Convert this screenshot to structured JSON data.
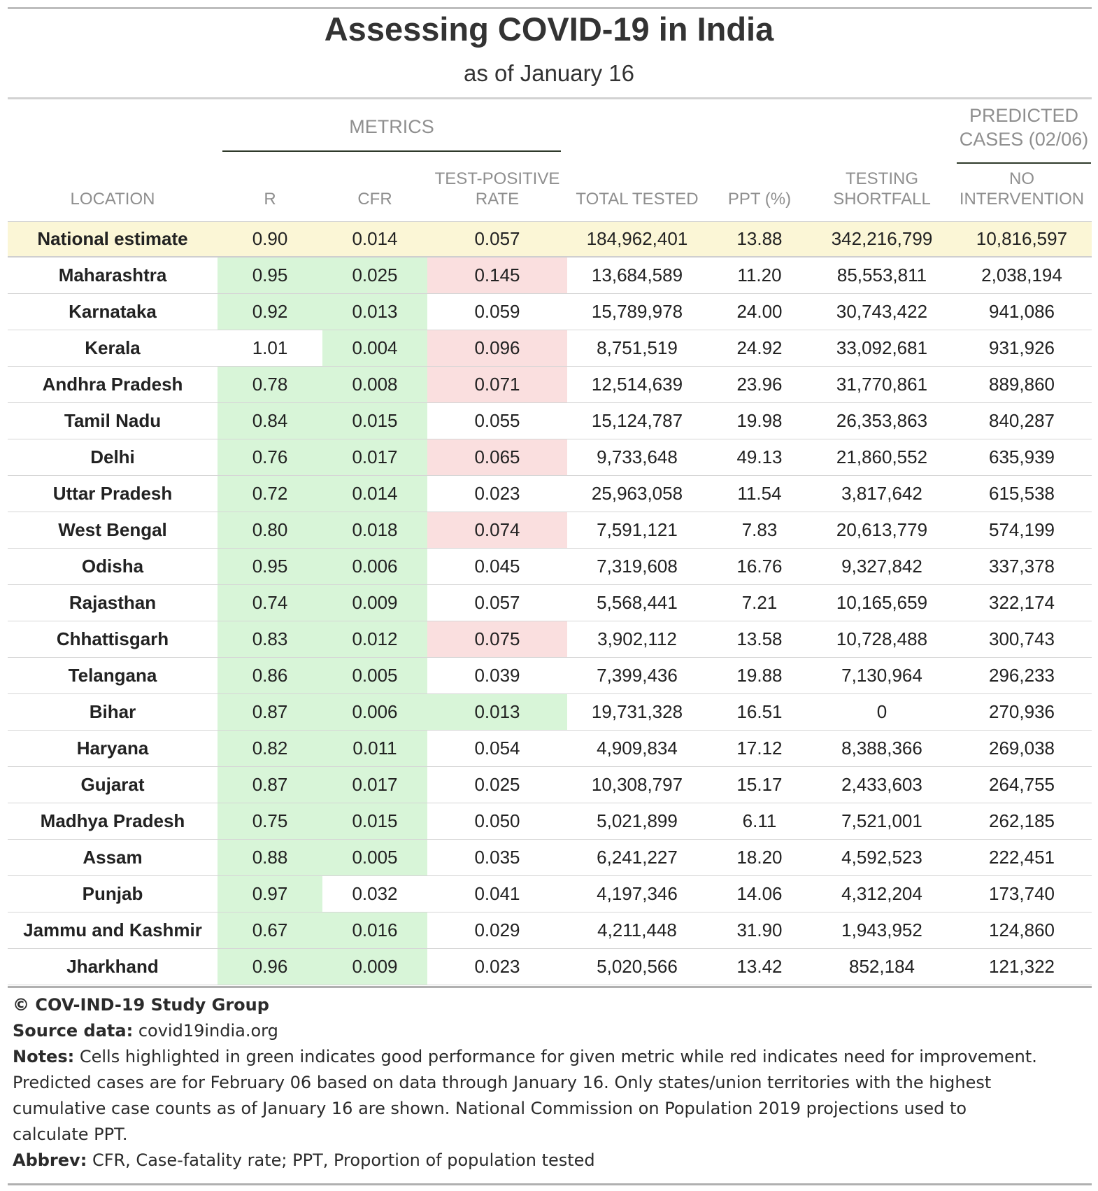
{
  "title": "Assessing COVID-19 in India",
  "subtitle": "as of January 16",
  "spanners": {
    "metrics": "METRICS",
    "predicted_line1": "PREDICTED",
    "predicted_line2": "CASES (02/06)"
  },
  "column_headers": {
    "location": "LOCATION",
    "r": "R",
    "cfr": "CFR",
    "tpr_line1": "TEST-POSITIVE",
    "tpr_line2": "RATE",
    "total_tested": "TOTAL TESTED",
    "ppt": "PPT (%)",
    "shortfall_line1": "TESTING",
    "shortfall_line2": "SHORTFALL",
    "nointervention_line1": "NO",
    "nointervention_line2": "INTERVENTION"
  },
  "colors": {
    "good": "#d8f5d8",
    "needs_improvement": "#fadfdf",
    "national_row": "#fbf6d6"
  },
  "chart_data": {
    "type": "table",
    "title": "Assessing COVID-19 in India",
    "subtitle": "as of January 16",
    "columns": [
      "LOCATION",
      "R",
      "CFR",
      "TEST-POSITIVE RATE",
      "TOTAL TESTED",
      "PPT (%)",
      "TESTING SHORTFALL",
      "NO INTERVENTION"
    ],
    "rows": [
      {
        "location": "National estimate",
        "r": "0.90",
        "cfr": "0.014",
        "tpr": "0.057",
        "total_tested": "184,962,401",
        "ppt": "13.88",
        "shortfall": "342,216,799",
        "no_intervention": "10,816,597",
        "highlight": {
          "r": "",
          "cfr": "",
          "tpr": ""
        }
      },
      {
        "location": "Maharashtra",
        "r": "0.95",
        "cfr": "0.025",
        "tpr": "0.145",
        "total_tested": "13,684,589",
        "ppt": "11.20",
        "shortfall": "85,553,811",
        "no_intervention": "2,038,194",
        "highlight": {
          "r": "green",
          "cfr": "green",
          "tpr": "red"
        }
      },
      {
        "location": "Karnataka",
        "r": "0.92",
        "cfr": "0.013",
        "tpr": "0.059",
        "total_tested": "15,789,978",
        "ppt": "24.00",
        "shortfall": "30,743,422",
        "no_intervention": "941,086",
        "highlight": {
          "r": "green",
          "cfr": "green",
          "tpr": ""
        }
      },
      {
        "location": "Kerala",
        "r": "1.01",
        "cfr": "0.004",
        "tpr": "0.096",
        "total_tested": "8,751,519",
        "ppt": "24.92",
        "shortfall": "33,092,681",
        "no_intervention": "931,926",
        "highlight": {
          "r": "",
          "cfr": "green",
          "tpr": "red"
        }
      },
      {
        "location": "Andhra Pradesh",
        "r": "0.78",
        "cfr": "0.008",
        "tpr": "0.071",
        "total_tested": "12,514,639",
        "ppt": "23.96",
        "shortfall": "31,770,861",
        "no_intervention": "889,860",
        "highlight": {
          "r": "green",
          "cfr": "green",
          "tpr": "red"
        }
      },
      {
        "location": "Tamil Nadu",
        "r": "0.84",
        "cfr": "0.015",
        "tpr": "0.055",
        "total_tested": "15,124,787",
        "ppt": "19.98",
        "shortfall": "26,353,863",
        "no_intervention": "840,287",
        "highlight": {
          "r": "green",
          "cfr": "green",
          "tpr": ""
        }
      },
      {
        "location": "Delhi",
        "r": "0.76",
        "cfr": "0.017",
        "tpr": "0.065",
        "total_tested": "9,733,648",
        "ppt": "49.13",
        "shortfall": "21,860,552",
        "no_intervention": "635,939",
        "highlight": {
          "r": "green",
          "cfr": "green",
          "tpr": "red"
        }
      },
      {
        "location": "Uttar Pradesh",
        "r": "0.72",
        "cfr": "0.014",
        "tpr": "0.023",
        "total_tested": "25,963,058",
        "ppt": "11.54",
        "shortfall": "3,817,642",
        "no_intervention": "615,538",
        "highlight": {
          "r": "green",
          "cfr": "green",
          "tpr": ""
        }
      },
      {
        "location": "West Bengal",
        "r": "0.80",
        "cfr": "0.018",
        "tpr": "0.074",
        "total_tested": "7,591,121",
        "ppt": "7.83",
        "shortfall": "20,613,779",
        "no_intervention": "574,199",
        "highlight": {
          "r": "green",
          "cfr": "green",
          "tpr": "red"
        }
      },
      {
        "location": "Odisha",
        "r": "0.95",
        "cfr": "0.006",
        "tpr": "0.045",
        "total_tested": "7,319,608",
        "ppt": "16.76",
        "shortfall": "9,327,842",
        "no_intervention": "337,378",
        "highlight": {
          "r": "green",
          "cfr": "green",
          "tpr": ""
        }
      },
      {
        "location": "Rajasthan",
        "r": "0.74",
        "cfr": "0.009",
        "tpr": "0.057",
        "total_tested": "5,568,441",
        "ppt": "7.21",
        "shortfall": "10,165,659",
        "no_intervention": "322,174",
        "highlight": {
          "r": "green",
          "cfr": "green",
          "tpr": ""
        }
      },
      {
        "location": "Chhattisgarh",
        "r": "0.83",
        "cfr": "0.012",
        "tpr": "0.075",
        "total_tested": "3,902,112",
        "ppt": "13.58",
        "shortfall": "10,728,488",
        "no_intervention": "300,743",
        "highlight": {
          "r": "green",
          "cfr": "green",
          "tpr": "red"
        }
      },
      {
        "location": "Telangana",
        "r": "0.86",
        "cfr": "0.005",
        "tpr": "0.039",
        "total_tested": "7,399,436",
        "ppt": "19.88",
        "shortfall": "7,130,964",
        "no_intervention": "296,233",
        "highlight": {
          "r": "green",
          "cfr": "green",
          "tpr": ""
        }
      },
      {
        "location": "Bihar",
        "r": "0.87",
        "cfr": "0.006",
        "tpr": "0.013",
        "total_tested": "19,731,328",
        "ppt": "16.51",
        "shortfall": "0",
        "no_intervention": "270,936",
        "highlight": {
          "r": "green",
          "cfr": "green",
          "tpr": "green"
        }
      },
      {
        "location": "Haryana",
        "r": "0.82",
        "cfr": "0.011",
        "tpr": "0.054",
        "total_tested": "4,909,834",
        "ppt": "17.12",
        "shortfall": "8,388,366",
        "no_intervention": "269,038",
        "highlight": {
          "r": "green",
          "cfr": "green",
          "tpr": ""
        }
      },
      {
        "location": "Gujarat",
        "r": "0.87",
        "cfr": "0.017",
        "tpr": "0.025",
        "total_tested": "10,308,797",
        "ppt": "15.17",
        "shortfall": "2,433,603",
        "no_intervention": "264,755",
        "highlight": {
          "r": "green",
          "cfr": "green",
          "tpr": ""
        }
      },
      {
        "location": "Madhya Pradesh",
        "r": "0.75",
        "cfr": "0.015",
        "tpr": "0.050",
        "total_tested": "5,021,899",
        "ppt": "6.11",
        "shortfall": "7,521,001",
        "no_intervention": "262,185",
        "highlight": {
          "r": "green",
          "cfr": "green",
          "tpr": ""
        }
      },
      {
        "location": "Assam",
        "r": "0.88",
        "cfr": "0.005",
        "tpr": "0.035",
        "total_tested": "6,241,227",
        "ppt": "18.20",
        "shortfall": "4,592,523",
        "no_intervention": "222,451",
        "highlight": {
          "r": "green",
          "cfr": "green",
          "tpr": ""
        }
      },
      {
        "location": "Punjab",
        "r": "0.97",
        "cfr": "0.032",
        "tpr": "0.041",
        "total_tested": "4,197,346",
        "ppt": "14.06",
        "shortfall": "4,312,204",
        "no_intervention": "173,740",
        "highlight": {
          "r": "green",
          "cfr": "",
          "tpr": ""
        }
      },
      {
        "location": "Jammu and Kashmir",
        "r": "0.67",
        "cfr": "0.016",
        "tpr": "0.029",
        "total_tested": "4,211,448",
        "ppt": "31.90",
        "shortfall": "1,943,952",
        "no_intervention": "124,860",
        "highlight": {
          "r": "green",
          "cfr": "green",
          "tpr": ""
        }
      },
      {
        "location": "Jharkhand",
        "r": "0.96",
        "cfr": "0.009",
        "tpr": "0.023",
        "total_tested": "5,020,566",
        "ppt": "13.42",
        "shortfall": "852,184",
        "no_intervention": "121,322",
        "highlight": {
          "r": "green",
          "cfr": "green",
          "tpr": ""
        }
      }
    ]
  },
  "footer": {
    "copyright": "© COV-IND-19 Study Group",
    "source_label": "Source data:",
    "source_value": "covid19india.org",
    "notes_label": "Notes:",
    "notes_line1": "Cells highlighted in green indicates good performance for given metric while red indicates need for improvement.",
    "notes_line2": "Predicted cases are for February 06 based on data through January 16. Only states/union territories with the highest",
    "notes_line3": "cumulative case counts as of January 16 are shown. National Commission on Population 2019 projections used to",
    "notes_line4": "calculate PPT.",
    "abbrev_label": "Abbrev:",
    "abbrev_value": "CFR, Case-fatality rate; PPT, Proportion of population tested"
  }
}
